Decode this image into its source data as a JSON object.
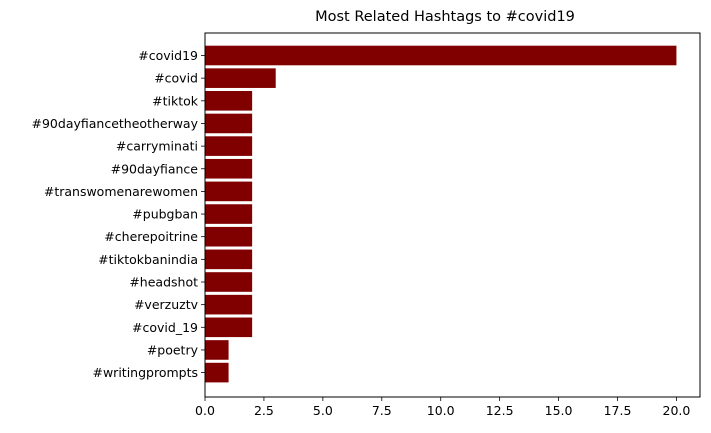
{
  "chart_data": {
    "type": "bar",
    "orientation": "horizontal",
    "title": "Most Related Hashtags to #covid19",
    "xlabel": "",
    "ylabel": "",
    "categories": [
      "#covid19",
      "#covid",
      "#tiktok",
      "#90dayfiancetheotherway",
      "#carryminati",
      "#90dayfiance",
      "#transwomenarewomen",
      "#pubgban",
      "#cherepoitrine",
      "#tiktokbanindia",
      "#headshot",
      "#verzuztv",
      "#covid_19",
      "#poetry",
      "#writingprompts"
    ],
    "values": [
      20,
      3,
      2,
      2,
      2,
      2,
      2,
      2,
      2,
      2,
      2,
      2,
      2,
      1,
      1
    ],
    "xlim": [
      0,
      21
    ],
    "xticks": [
      "0.0",
      "2.5",
      "5.0",
      "7.5",
      "10.0",
      "12.5",
      "15.0",
      "17.5",
      "20.0"
    ],
    "bar_color": "#800000",
    "grid": false,
    "legend": "none"
  }
}
